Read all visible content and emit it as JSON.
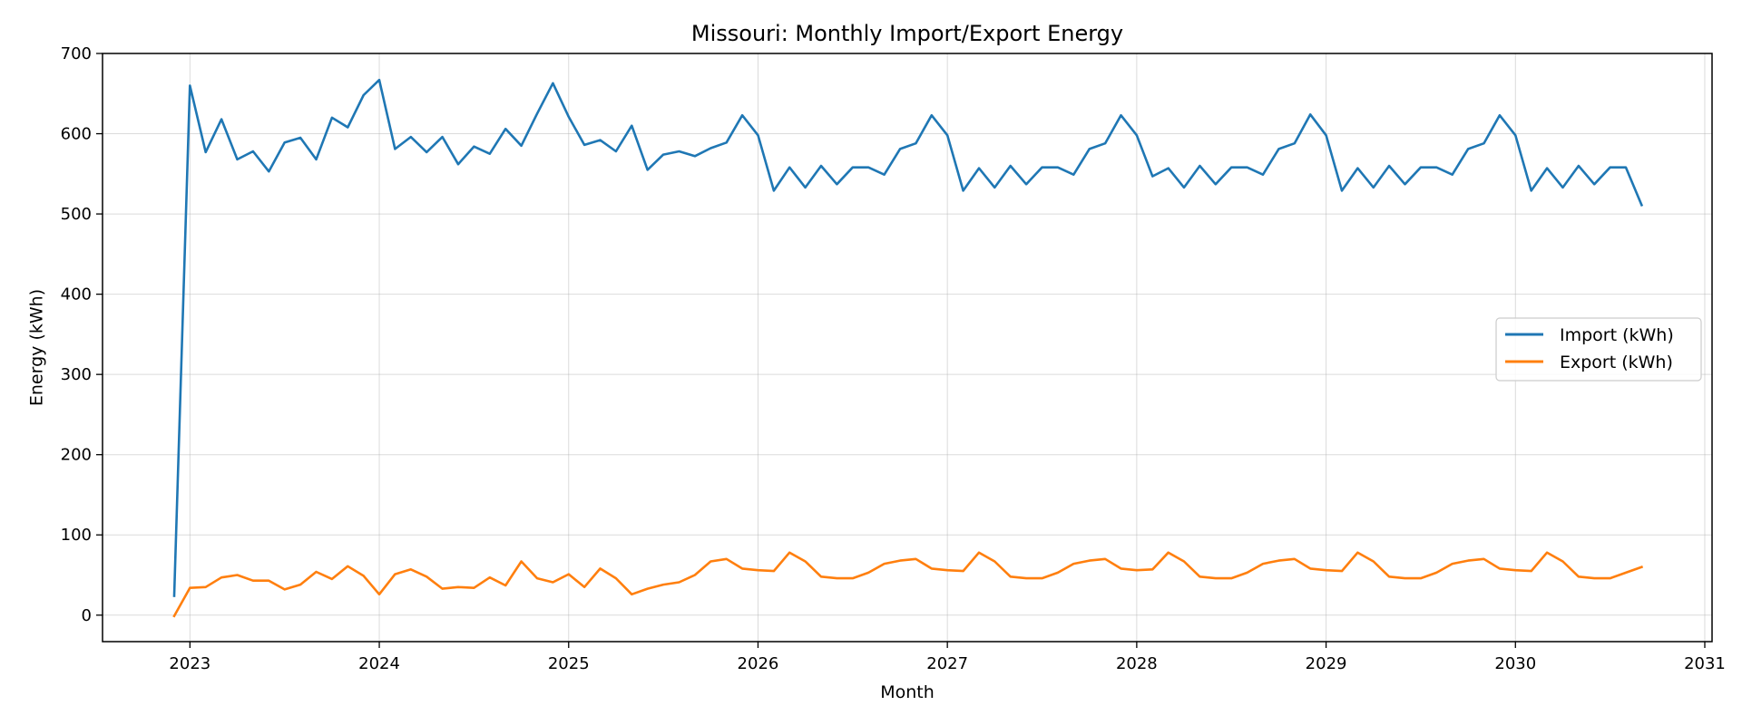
{
  "chart_data": {
    "type": "line",
    "title": "Missouri: Monthly Import/Export Energy",
    "xlabel": "Month",
    "ylabel": "Energy (kWh)",
    "xlim": [
      "2022-07-15",
      "2031-01-15"
    ],
    "ylim": [
      -33,
      700
    ],
    "x_ticks": [
      "2023",
      "2024",
      "2025",
      "2026",
      "2027",
      "2028",
      "2029",
      "2030",
      "2031"
    ],
    "y_ticks": [
      0,
      100,
      200,
      300,
      400,
      500,
      600,
      700
    ],
    "grid": true,
    "legend_position": "center-right",
    "x": [
      "2022-12",
      "2023-01",
      "2023-02",
      "2023-03",
      "2023-04",
      "2023-05",
      "2023-06",
      "2023-07",
      "2023-08",
      "2023-09",
      "2023-10",
      "2023-11",
      "2023-12",
      "2024-01",
      "2024-02",
      "2024-03",
      "2024-04",
      "2024-05",
      "2024-06",
      "2024-07",
      "2024-08",
      "2024-09",
      "2024-10",
      "2024-11",
      "2024-12",
      "2025-01",
      "2025-02",
      "2025-03",
      "2025-04",
      "2025-05",
      "2025-06",
      "2025-07",
      "2025-08",
      "2025-09",
      "2025-10",
      "2025-11",
      "2025-12",
      "2026-01",
      "2026-02",
      "2026-03",
      "2026-04",
      "2026-05",
      "2026-06",
      "2026-07",
      "2026-08",
      "2026-09",
      "2026-10",
      "2026-11",
      "2026-12",
      "2027-01",
      "2027-02",
      "2027-03",
      "2027-04",
      "2027-05",
      "2027-06",
      "2027-07",
      "2027-08",
      "2027-09",
      "2027-10",
      "2027-11",
      "2027-12",
      "2028-01",
      "2028-02",
      "2028-03",
      "2028-04",
      "2028-05",
      "2028-06",
      "2028-07",
      "2028-08",
      "2028-09",
      "2028-10",
      "2028-11",
      "2028-12",
      "2029-01",
      "2029-02",
      "2029-03",
      "2029-04",
      "2029-05",
      "2029-06",
      "2029-07",
      "2029-08",
      "2029-09",
      "2029-10",
      "2029-11",
      "2029-12",
      "2030-01",
      "2030-02",
      "2030-03",
      "2030-04",
      "2030-05",
      "2030-06",
      "2030-07",
      "2030-08",
      "2030-09"
    ],
    "series": [
      {
        "name": "Import (kWh)",
        "color": "#1f77b4",
        "values": [
          24,
          660,
          577,
          618,
          568,
          578,
          553,
          589,
          595,
          568,
          620,
          608,
          648,
          667,
          581,
          596,
          577,
          596,
          562,
          584,
          575,
          606,
          585,
          625,
          663,
          621,
          586,
          592,
          578,
          610,
          555,
          574,
          578,
          572,
          582,
          589,
          623,
          598,
          529,
          558,
          533,
          560,
          537,
          558,
          558,
          549,
          581,
          588,
          623,
          598,
          529,
          557,
          533,
          560,
          537,
          558,
          558,
          549,
          581,
          588,
          623,
          598,
          547,
          557,
          533,
          560,
          537,
          558,
          558,
          549,
          581,
          588,
          624,
          598,
          529,
          557,
          533,
          560,
          537,
          558,
          558,
          549,
          581,
          588,
          623,
          598,
          529,
          557,
          533,
          560,
          537,
          558,
          558,
          511
        ]
      },
      {
        "name": "Export (kWh)",
        "color": "#ff7f0e",
        "values": [
          -1,
          34,
          35,
          47,
          50,
          43,
          43,
          32,
          38,
          54,
          45,
          61,
          49,
          26,
          51,
          57,
          48,
          33,
          35,
          34,
          47,
          37,
          67,
          46,
          41,
          51,
          35,
          58,
          46,
          26,
          33,
          38,
          41,
          50,
          67,
          70,
          58,
          56,
          55,
          78,
          67,
          48,
          46,
          46,
          53,
          64,
          68,
          70,
          58,
          56,
          55,
          78,
          67,
          48,
          46,
          46,
          53,
          64,
          68,
          70,
          58,
          56,
          57,
          78,
          67,
          48,
          46,
          46,
          53,
          64,
          68,
          70,
          58,
          56,
          55,
          78,
          67,
          48,
          46,
          46,
          53,
          64,
          68,
          70,
          58,
          56,
          55,
          78,
          67,
          48,
          46,
          46,
          53,
          60
        ]
      }
    ]
  }
}
